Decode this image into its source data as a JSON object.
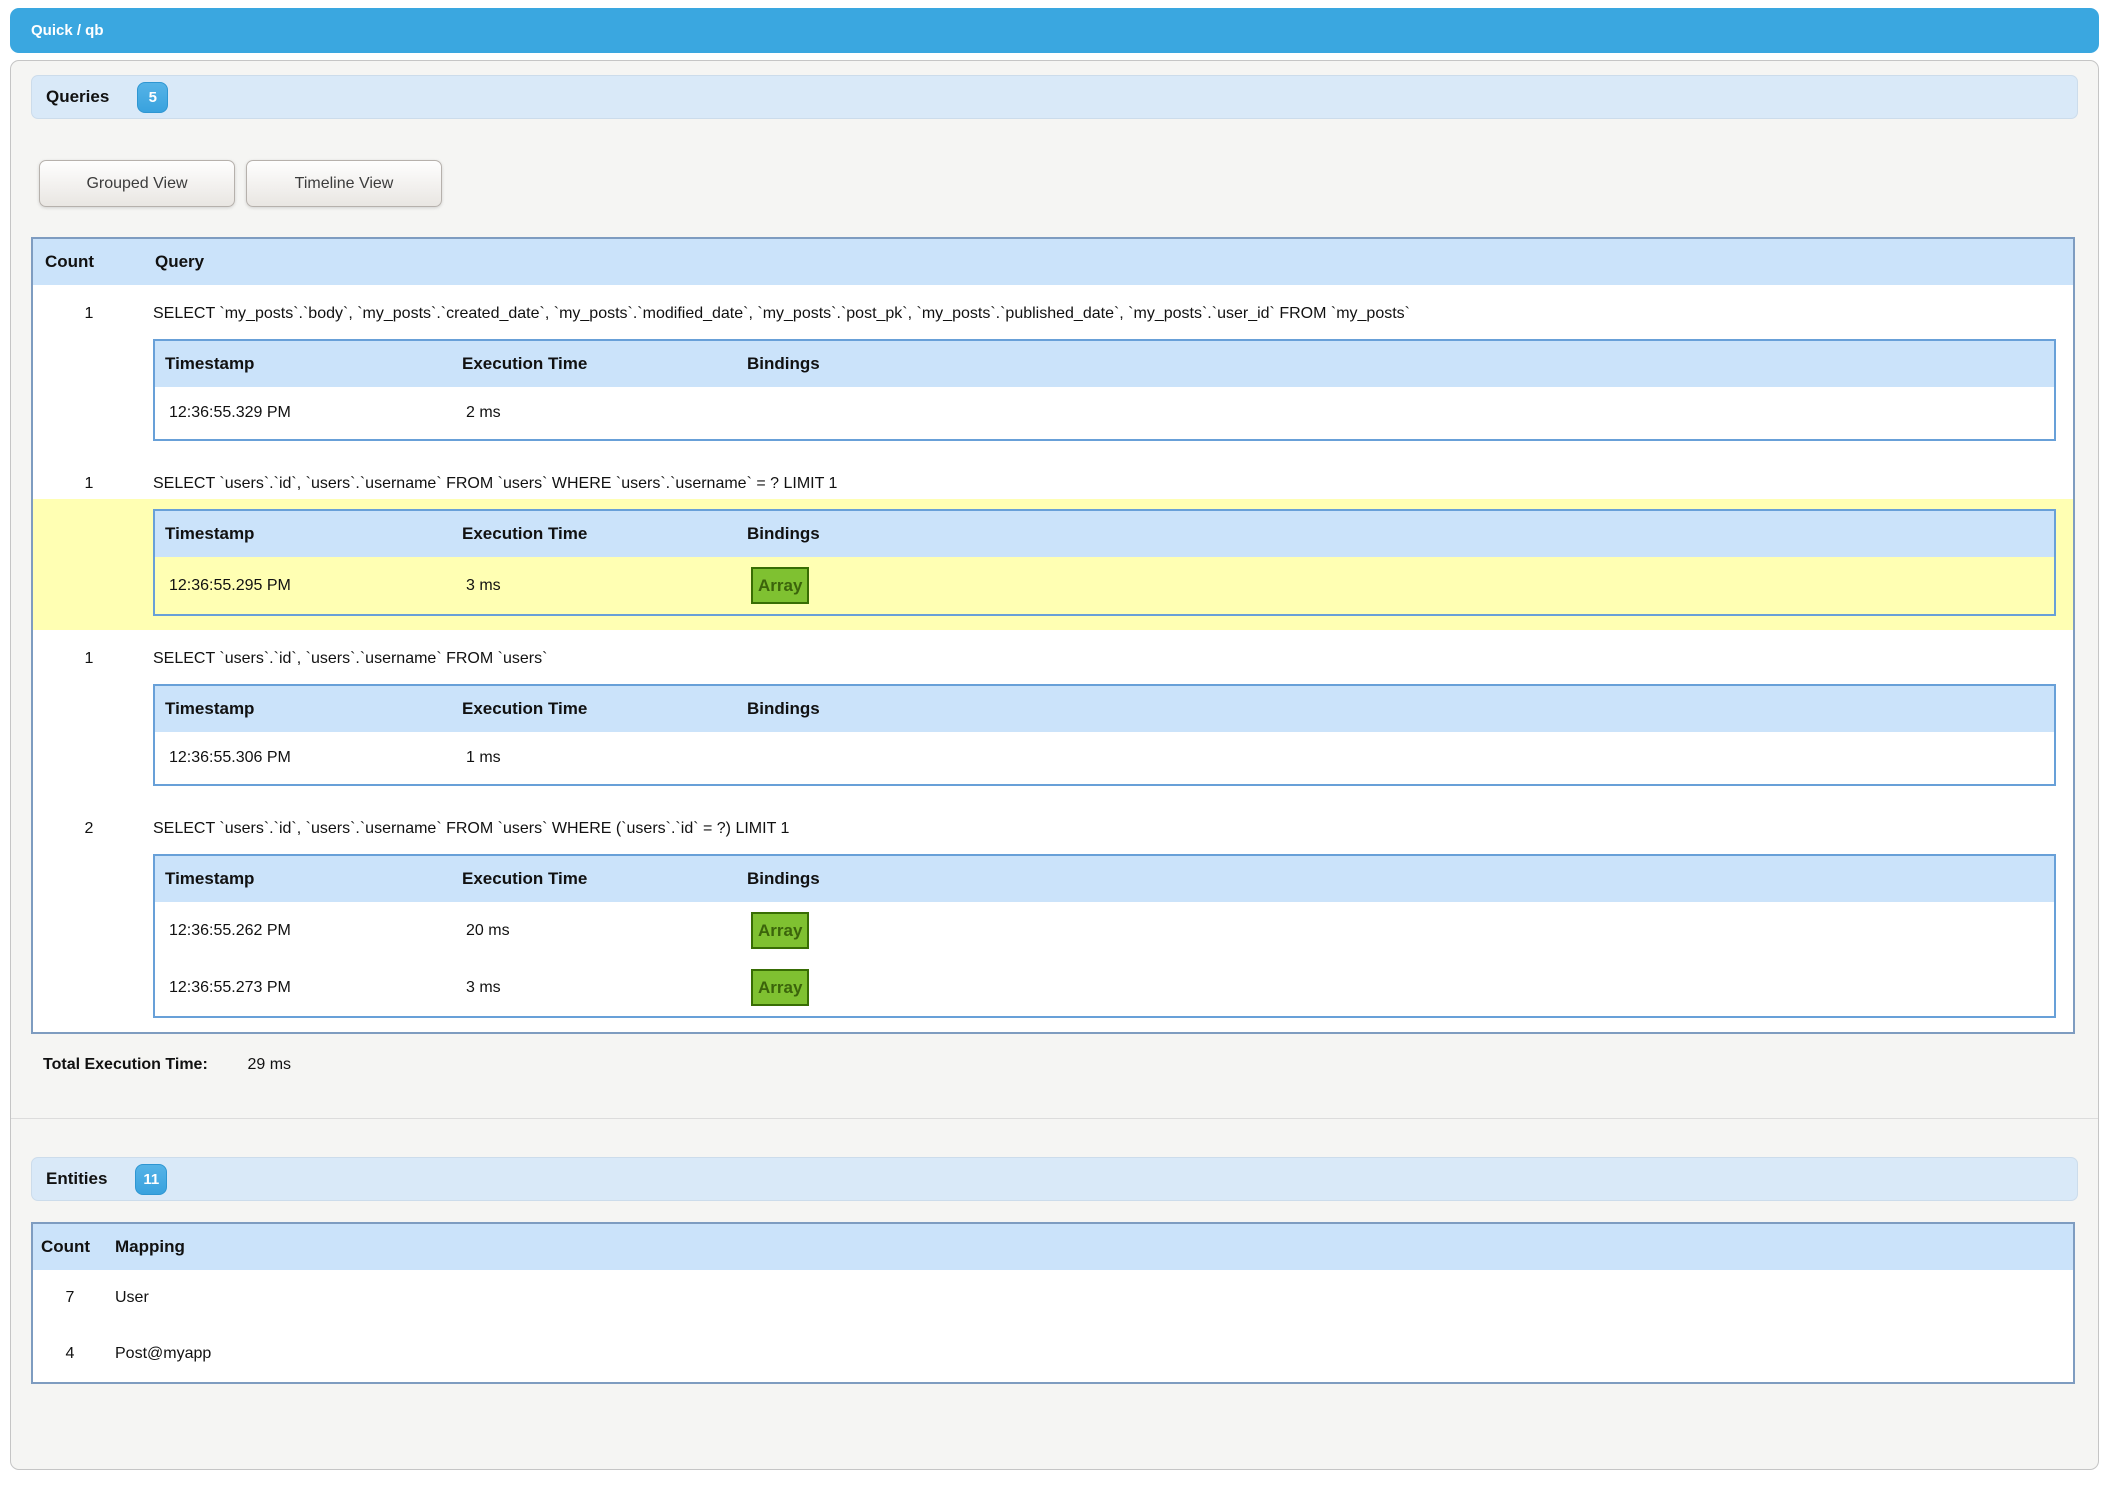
{
  "titlebar": {
    "title": "Quick / qb"
  },
  "queries_section": {
    "title": "Queries",
    "badge": "5",
    "buttons": {
      "grouped": "Grouped View",
      "timeline": "Timeline View"
    },
    "table": {
      "headers": {
        "count": "Count",
        "query": "Query"
      },
      "sub_headers": {
        "timestamp": "Timestamp",
        "execution_time": "Execution Time",
        "bindings": "Bindings"
      },
      "groups": [
        {
          "count": "1",
          "sql": "SELECT `my_posts`.`body`, `my_posts`.`created_date`, `my_posts`.`modified_date`, `my_posts`.`post_pk`, `my_posts`.`published_date`, `my_posts`.`user_id` FROM `my_posts`",
          "highlighted": false,
          "executions": [
            {
              "timestamp": "12:36:55.329 PM",
              "execution_time": "2 ms",
              "bindings": null
            }
          ]
        },
        {
          "count": "1",
          "sql": "SELECT `users`.`id`, `users`.`username` FROM `users` WHERE `users`.`username` = ? LIMIT 1",
          "highlighted": true,
          "executions": [
            {
              "timestamp": "12:36:55.295 PM",
              "execution_time": "3 ms",
              "bindings": "Array"
            }
          ]
        },
        {
          "count": "1",
          "sql": "SELECT `users`.`id`, `users`.`username` FROM `users`",
          "highlighted": false,
          "executions": [
            {
              "timestamp": "12:36:55.306 PM",
              "execution_time": "1 ms",
              "bindings": null
            }
          ]
        },
        {
          "count": "2",
          "sql": "SELECT `users`.`id`, `users`.`username` FROM `users` WHERE (`users`.`id` = ?) LIMIT 1",
          "highlighted": false,
          "executions": [
            {
              "timestamp": "12:36:55.262 PM",
              "execution_time": "20 ms",
              "bindings": "Array"
            },
            {
              "timestamp": "12:36:55.273 PM",
              "execution_time": "3 ms",
              "bindings": "Array"
            }
          ]
        }
      ]
    },
    "total_label": "Total Execution Time:",
    "total_value": "29 ms"
  },
  "entities_section": {
    "title": "Entities",
    "badge": "11",
    "table": {
      "headers": {
        "count": "Count",
        "mapping": "Mapping"
      },
      "rows": [
        {
          "count": "7",
          "mapping": "User"
        },
        {
          "count": "4",
          "mapping": "Post@myapp"
        }
      ]
    }
  },
  "colors": {
    "titlebar_blue": "#3aa7e0",
    "badge_blue": "#42a8e0",
    "section_header_blue": "#d9e9f8",
    "table_header_blue": "#cbe3fa",
    "highlight_yellow": "#ffffb3",
    "array_button_green": "#7fc131",
    "array_button_border": "#386d04",
    "table_border_blue": "#68a0d8"
  }
}
